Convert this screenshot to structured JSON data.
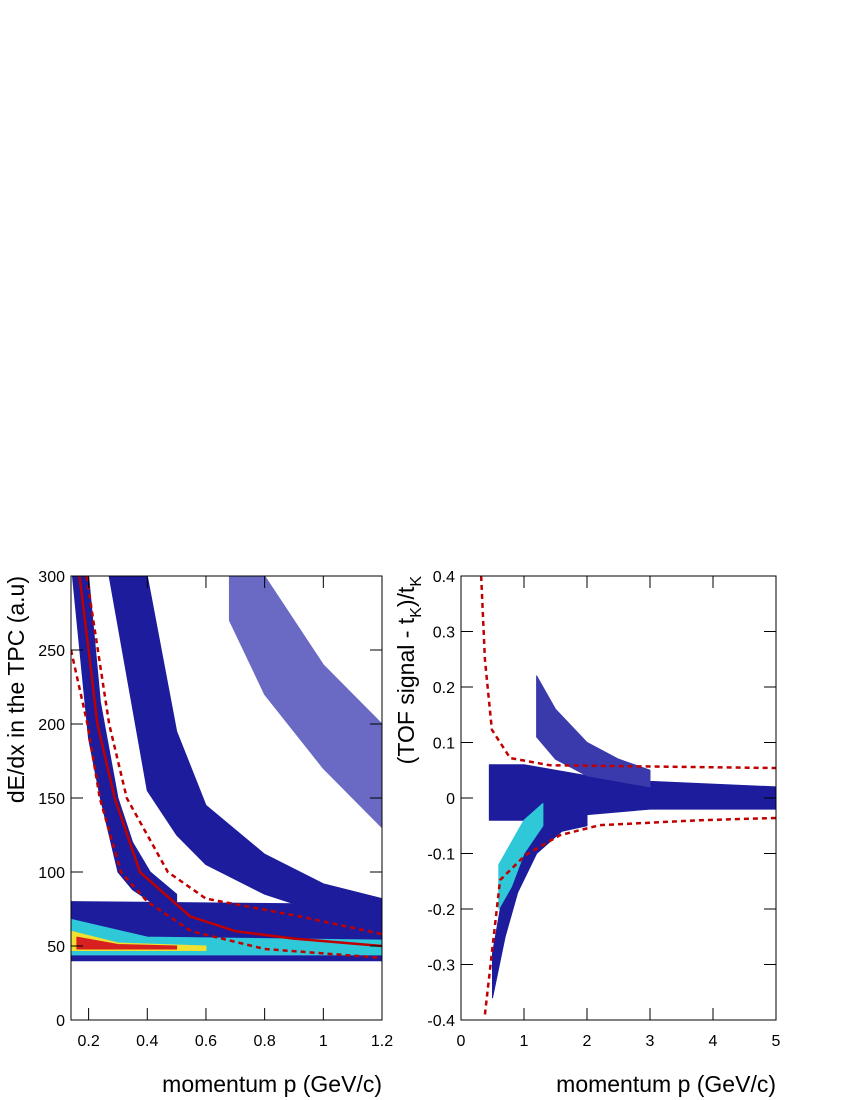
{
  "chart_data": [
    {
      "type": "density",
      "xlabel": "momentum p (GeV/c)",
      "ylabel": [
        "dE/dx in the TPC (a.u)"
      ],
      "xlim": [
        0.14,
        1.2
      ],
      "ylim": [
        0,
        300
      ],
      "xticks": [
        0.2,
        0.4,
        0.6,
        0.8,
        1,
        1.2
      ],
      "yticks": [
        0,
        50,
        100,
        150,
        200,
        250,
        300
      ],
      "bands": [
        {
          "color": "#1c1c9c",
          "x": [
            0.14,
            1.2
          ],
          "low": [
            40,
            40
          ],
          "high": [
            80,
            78
          ]
        },
        {
          "color": "#1c1c9c",
          "x": [
            0.145,
            0.2,
            0.24,
            0.3,
            0.35,
            0.41,
            0.5
          ],
          "low": [
            300,
            190,
            150,
            100,
            88,
            80,
            78
          ],
          "high": [
            300,
            300,
            215,
            150,
            120,
            100,
            85
          ]
        },
        {
          "color": "#1c1c9c",
          "x": [
            0.27,
            0.4,
            0.5,
            0.6,
            0.8,
            1.0,
            1.2
          ],
          "low": [
            300,
            155,
            125,
            105,
            85,
            72,
            65
          ],
          "high": [
            300,
            300,
            195,
            145,
            112,
            92,
            82
          ]
        },
        {
          "color": "#6a6ac4",
          "x": [
            0.68,
            0.8,
            1.0,
            1.2
          ],
          "low": [
            270,
            220,
            170,
            130
          ],
          "high": [
            300,
            300,
            240,
            200
          ]
        },
        {
          "color": "#2fc8d8",
          "x": [
            0.14,
            0.4,
            1.2
          ],
          "low": [
            44,
            44,
            44
          ],
          "high": [
            68,
            56,
            54
          ]
        },
        {
          "color": "#f0e030",
          "x": [
            0.14,
            0.3,
            0.6
          ],
          "low": [
            47,
            47,
            47
          ],
          "high": [
            60,
            52,
            50
          ]
        },
        {
          "color": "#d82020",
          "x": [
            0.16,
            0.3,
            0.5
          ],
          "low": [
            48,
            48,
            48
          ],
          "high": [
            56,
            51,
            50
          ]
        }
      ],
      "series": [
        {
          "color": "#c00000",
          "dash": false,
          "x": [
            0.169,
            0.2,
            0.23,
            0.289,
            0.375,
            0.546,
            0.7,
            0.9,
            1.2
          ],
          "values": [
            300,
            250,
            200,
            150,
            100,
            70,
            60,
            55,
            50
          ]
        },
        {
          "color": "#c00000",
          "dash": true,
          "x": [
            0.193,
            0.27,
            0.33,
            0.47,
            0.6,
            0.92,
            1.2
          ],
          "values": [
            300,
            200,
            150,
            100,
            82,
            70,
            58
          ]
        },
        {
          "color": "#c00000",
          "dash": true,
          "x": [
            0.14,
            0.196,
            0.238,
            0.31,
            0.4,
            0.55,
            0.8,
            1.2
          ],
          "values": [
            250,
            200,
            150,
            100,
            80,
            60,
            48,
            42
          ]
        }
      ]
    },
    {
      "type": "density",
      "xlabel": "momentum p (GeV/c)",
      "ylabel": [
        "(TOF signal - t",
        "K",
        ")/t",
        "K"
      ],
      "xlim": [
        0,
        5
      ],
      "ylim": [
        -0.4,
        0.4
      ],
      "xticks": [
        0,
        1,
        2,
        3,
        4,
        5
      ],
      "yticks": [
        -0.4,
        -0.3,
        -0.2,
        -0.1,
        0,
        0.1,
        0.2,
        0.3,
        0.4
      ],
      "bands": [
        {
          "color": "#1c1c9c",
          "x": [
            0.45,
            1,
            2,
            3,
            5
          ],
          "low": [
            -0.04,
            -0.04,
            -0.03,
            -0.02,
            -0.02
          ],
          "high": [
            0.06,
            0.06,
            0.04,
            0.03,
            0.02
          ]
        },
        {
          "color": "#1c1c9c",
          "x": [
            0.5,
            0.7,
            0.9,
            1.2,
            1.6,
            2
          ],
          "low": [
            -0.36,
            -0.25,
            -0.17,
            -0.1,
            -0.06,
            -0.05
          ],
          "high": [
            -0.28,
            -0.15,
            -0.08,
            -0.04,
            -0.02,
            0
          ]
        },
        {
          "color": "#3a3aac",
          "x": [
            1.2,
            1.5,
            2,
            2.5,
            3
          ],
          "low": [
            0.11,
            0.07,
            0.04,
            0.03,
            0.02
          ],
          "high": [
            0.22,
            0.16,
            0.1,
            0.07,
            0.05
          ]
        },
        {
          "color": "#2fc8d8",
          "x": [
            0.6,
            0.8,
            1.0,
            1.3
          ],
          "low": [
            -0.2,
            -0.16,
            -0.1,
            -0.05
          ],
          "high": [
            -0.12,
            -0.08,
            -0.04,
            -0.01
          ]
        }
      ],
      "series": [
        {
          "color": "#c00000",
          "dash": true,
          "x": [
            0.32,
            0.38,
            0.49,
            0.78,
            1.41,
            5
          ],
          "values": [
            0.4,
            0.249,
            0.123,
            0.072,
            0.059,
            0.054
          ]
        },
        {
          "color": "#c00000",
          "dash": true,
          "x": [
            0.38,
            0.62,
            1.02,
            1.57,
            2.2,
            3.8,
            5
          ],
          "values": [
            -0.39,
            -0.148,
            -0.103,
            -0.067,
            -0.049,
            -0.04,
            -0.036
          ]
        }
      ]
    }
  ]
}
